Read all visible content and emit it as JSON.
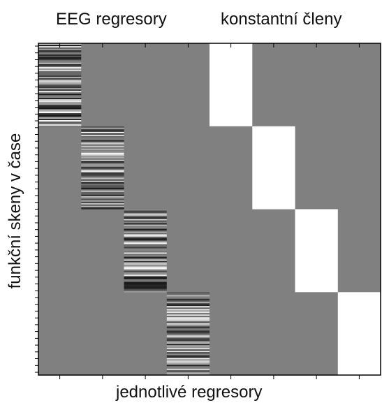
{
  "labels": {
    "eeg_header": "EEG regresory",
    "constant_header": "konstantní členy",
    "x_axis": "jednotlivé regresory",
    "y_axis": "funkční skeny v čase"
  },
  "matrix": {
    "n_columns": 8,
    "n_blocks": 4,
    "eeg_columns": 4,
    "constant_columns": 4,
    "background_color": "#808080",
    "constant_color": "#ffffff",
    "frame_color": "#000000"
  }
}
